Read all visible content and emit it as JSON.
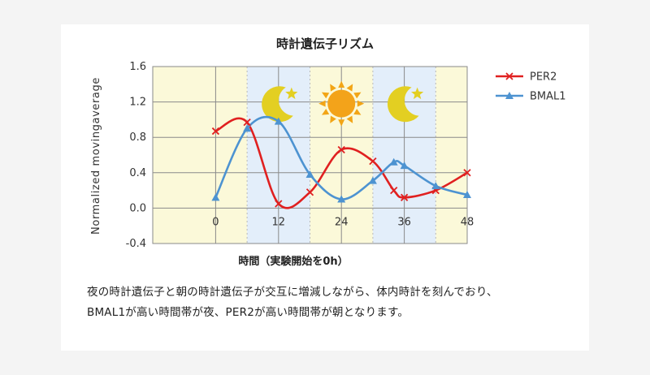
{
  "chart_data": {
    "type": "line",
    "title": "時計遺伝子リズム",
    "xlabel": "時間（実験開始を0h）",
    "ylabel": "Normalized movingaverage",
    "xlim": [
      -12,
      48
    ],
    "ylim": [
      -0.4,
      1.6
    ],
    "x_ticks": [
      0,
      12,
      24,
      36,
      48
    ],
    "y_ticks": [
      "1.6",
      "1.2",
      "0.8",
      "0.4",
      "0.0",
      "-0.4"
    ],
    "grid": true,
    "legend_position": "right",
    "background_bands": [
      {
        "from": -12,
        "to": 6,
        "fill": "#fbf9d9",
        "phase": "day"
      },
      {
        "from": 6,
        "to": 18,
        "fill": "#e3eefa",
        "phase": "night"
      },
      {
        "from": 18,
        "to": 30,
        "fill": "#fbf9d9",
        "phase": "day"
      },
      {
        "from": 30,
        "to": 42,
        "fill": "#e3eefa",
        "phase": "night"
      },
      {
        "from": 42,
        "to": 48,
        "fill": "#fbf9d9",
        "phase": "day"
      }
    ],
    "phase_icons": [
      {
        "icon": "moon-star-icon",
        "x": 12
      },
      {
        "icon": "sun-icon",
        "x": 24
      },
      {
        "icon": "moon-star-icon",
        "x": 36
      }
    ],
    "series": [
      {
        "name": "PER2",
        "color": "#e02020",
        "marker": "x",
        "x": [
          0,
          6,
          12,
          18,
          24,
          30,
          34,
          36,
          42,
          48
        ],
        "y": [
          0.87,
          0.97,
          0.05,
          0.18,
          0.66,
          0.53,
          0.2,
          0.12,
          0.2,
          0.4
        ]
      },
      {
        "name": "BMAL1",
        "color": "#4d93d1",
        "marker": "triangle",
        "x": [
          0,
          6,
          12,
          18,
          24,
          30,
          34,
          36,
          42,
          48
        ],
        "y": [
          0.12,
          0.9,
          0.98,
          0.38,
          0.1,
          0.31,
          0.52,
          0.48,
          0.25,
          0.15
        ]
      }
    ]
  },
  "caption": {
    "line1": "夜の時計遺伝子と朝の時計遺伝子が交互に増減しながら、体内時計を刻んでおり、",
    "line2": "BMAL1が高い時間帯が夜、PER2が高い時間帯が朝となります。"
  }
}
